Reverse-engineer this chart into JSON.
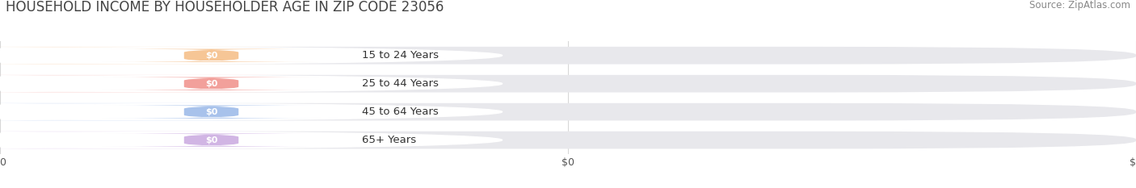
{
  "title": "HOUSEHOLD INCOME BY HOUSEHOLDER AGE IN ZIP CODE 23056",
  "source": "Source: ZipAtlas.com",
  "categories": [
    "15 to 24 Years",
    "25 to 44 Years",
    "45 to 64 Years",
    "65+ Years"
  ],
  "values": [
    0,
    0,
    0,
    0
  ],
  "bar_colors": [
    "#f5bc84",
    "#f0908a",
    "#99b8e8",
    "#c9a8e0"
  ],
  "bar_bg_color": "#e8e8ec",
  "background_color": "#ffffff",
  "grid_color": "#d8d8d8",
  "title_fontsize": 12,
  "source_fontsize": 8.5,
  "figsize": [
    14.06,
    2.33
  ],
  "dpi": 100
}
